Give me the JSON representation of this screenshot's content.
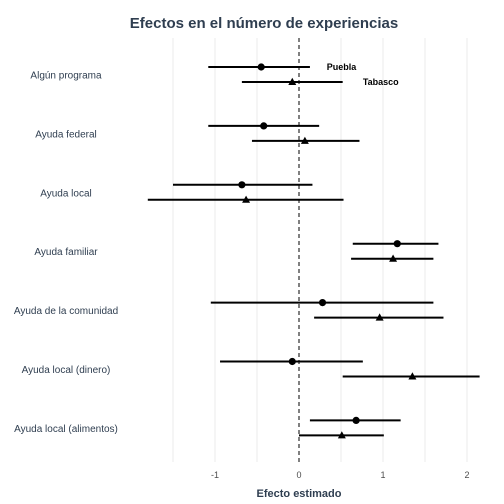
{
  "chart_data": {
    "type": "coefficient-plot",
    "title": "Efectos en el número de experiencias",
    "xlabel": "Efecto estimado",
    "ylabel": "",
    "xlim": [
      -1.5,
      2.15
    ],
    "x_ticks": [
      -1,
      0,
      1,
      2
    ],
    "x_tick_labels": [
      "-1",
      "0",
      "1",
      "2"
    ],
    "vertical_reference_line": 0,
    "grid": "vertical",
    "categories": [
      "Algún programa",
      "Ayuda federal",
      "Ayuda local",
      "Ayuda familiar",
      "Ayuda de la comunidad",
      "Ayuda local (dinero)",
      "Ayuda local (alimentos)"
    ],
    "series": [
      {
        "name": "Puebla",
        "marker": "circle",
        "estimate": [
          -0.45,
          -0.42,
          -0.68,
          1.17,
          0.28,
          -0.08,
          0.68
        ],
        "ci_low": [
          -1.08,
          -1.08,
          -1.5,
          0.64,
          -1.05,
          -0.94,
          0.13
        ],
        "ci_high": [
          0.13,
          0.24,
          0.16,
          1.66,
          1.6,
          0.76,
          1.21
        ]
      },
      {
        "name": "Tabasco",
        "marker": "triangle",
        "estimate": [
          -0.08,
          0.07,
          -0.63,
          1.12,
          0.96,
          1.35,
          0.51
        ],
        "ci_low": [
          -0.68,
          -0.56,
          -1.8,
          0.62,
          0.18,
          0.52,
          0.0
        ],
        "ci_high": [
          0.52,
          0.72,
          0.53,
          1.6,
          1.72,
          2.15,
          1.01
        ]
      }
    ],
    "annotations": [
      {
        "text": "Puebla",
        "series": "Puebla"
      },
      {
        "text": "Tabasco",
        "series": "Tabasco"
      }
    ]
  }
}
